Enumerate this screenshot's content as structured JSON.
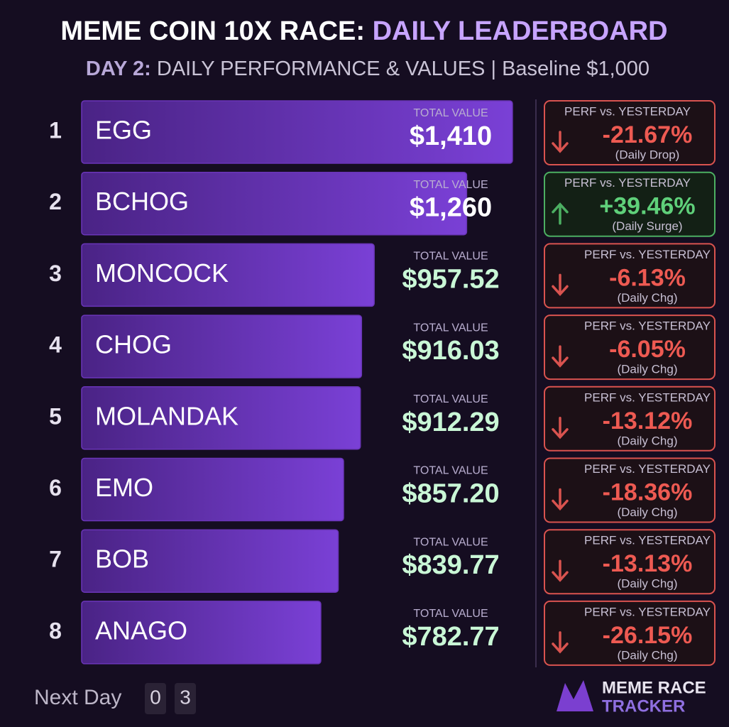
{
  "chart_data": {
    "type": "bar",
    "title": "MEME COIN 10X RACE:",
    "title_highlight": "DAILY LEADERBOARD",
    "subtitle_day": "DAY 2:",
    "subtitle": "DAILY PERFORMANCE & VALUES",
    "separator": "|",
    "baseline": "Baseline $1,000",
    "ranks": [
      1,
      2,
      3,
      4,
      5,
      6,
      7,
      8
    ],
    "categories": [
      "EGG",
      "BCHOG",
      "MONCOCK",
      "CHOG",
      "MOLANDAK",
      "EMO",
      "BOB",
      "ANAGO"
    ],
    "value_caption": "TOTAL VALUE",
    "values": [
      1410,
      1260,
      957.52,
      916.03,
      912.29,
      857.2,
      839.77,
      782.77
    ],
    "value_labels": [
      "$1,410",
      "$1,260",
      "$957.52",
      "$916.03",
      "$912.29",
      "$857.20",
      "$839.77",
      "$782.77"
    ],
    "xlim": [
      0,
      1510
    ],
    "color": "#6a35b8",
    "perf_caption": "PERF vs. YESTERDAY",
    "perf": [
      -21.67,
      39.46,
      -6.13,
      -6.05,
      -13.12,
      -18.36,
      -13.13,
      -26.15
    ],
    "perf_labels": [
      "-21.67%",
      "+39.46%",
      "-6.13%",
      "-6.05%",
      "-13.12%",
      "-18.36%",
      "-13.13%",
      "-26.15%"
    ],
    "perf_notes": [
      "(Daily Drop)",
      "(Daily Surge)",
      "(Daily Chg)",
      "(Daily Chg)",
      "(Daily Chg)",
      "(Daily Chg)",
      "(Daily Chg)",
      "(Daily Chg)"
    ],
    "footer": {
      "next_day": "Next Day",
      "digits": [
        "0",
        "3"
      ]
    },
    "brand": [
      "MEME RACE",
      "TRACKER"
    ]
  }
}
